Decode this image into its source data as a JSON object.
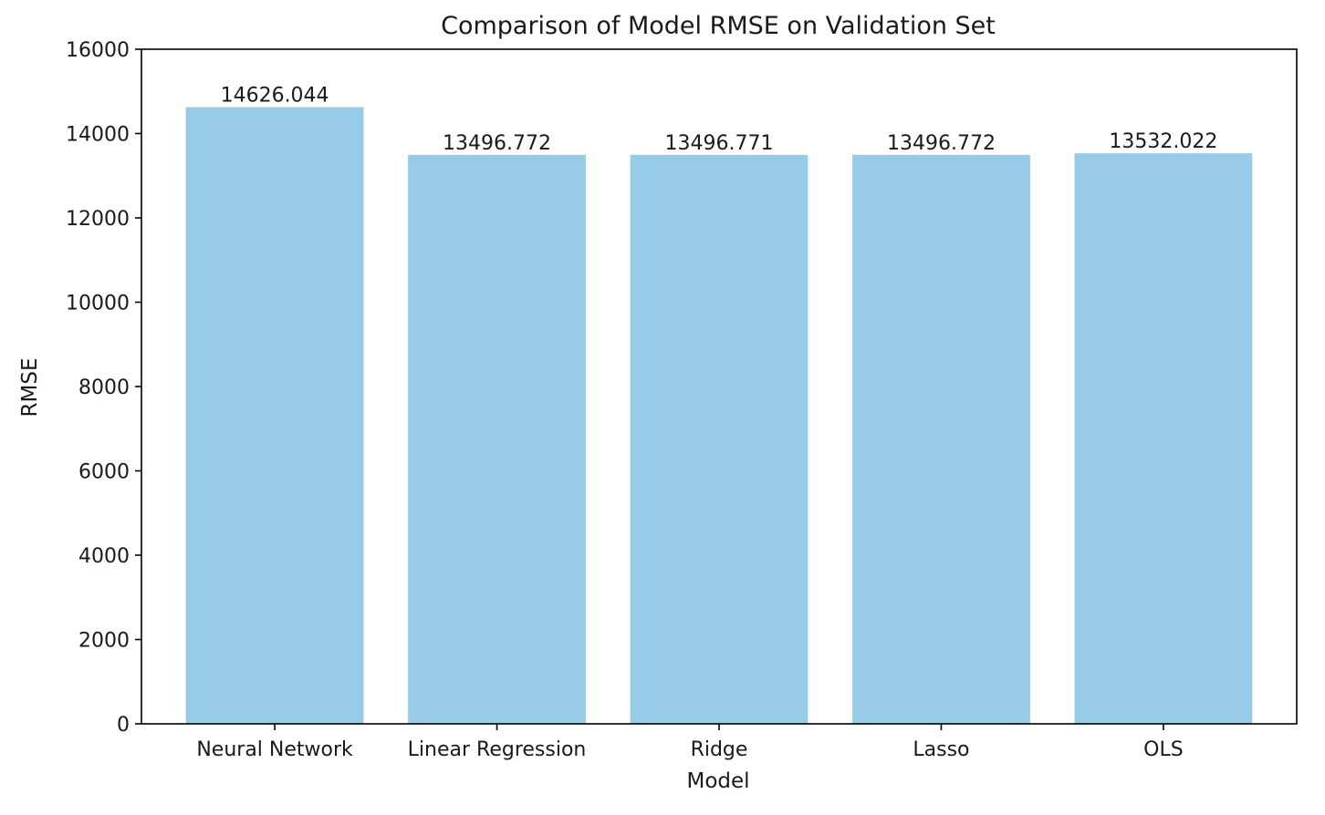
{
  "chart_data": {
    "type": "bar",
    "title": "Comparison of Model RMSE on Validation Set",
    "xlabel": "Model",
    "ylabel": "RMSE",
    "categories": [
      "Neural Network",
      "Linear Regression",
      "Ridge",
      "Lasso",
      "OLS"
    ],
    "values": [
      14626.044,
      13496.772,
      13496.771,
      13496.772,
      13532.022
    ],
    "value_labels": [
      "14626.044",
      "13496.772",
      "13496.771",
      "13496.772",
      "13532.022"
    ],
    "ylim": [
      0,
      16000
    ],
    "yticks": [
      0,
      2000,
      4000,
      6000,
      8000,
      10000,
      12000,
      14000,
      16000
    ],
    "ytick_labels": [
      "0",
      "2000",
      "4000",
      "6000",
      "8000",
      "10000",
      "12000",
      "14000",
      "16000"
    ],
    "grid": false,
    "bar_color": "#97cbe7"
  }
}
